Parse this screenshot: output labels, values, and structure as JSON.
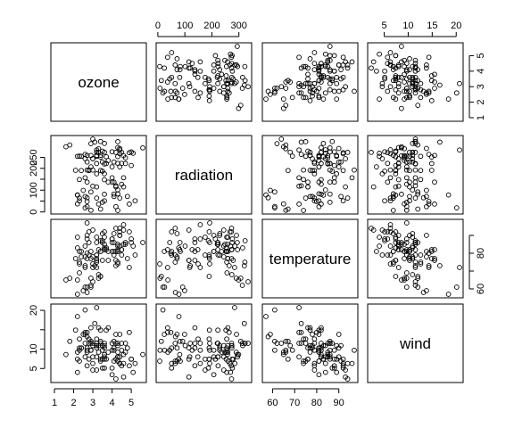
{
  "chart_data": {
    "type": "scatter",
    "variables": [
      "ozone",
      "radiation",
      "temperature",
      "wind"
    ],
    "ranges": {
      "ozone": [
        1.0,
        5.6
      ],
      "radiation": [
        7,
        334
      ],
      "temperature": [
        57,
        97
      ],
      "wind": [
        2.3,
        20.7
      ]
    },
    "axis_ticks": {
      "ozone": [
        1,
        2,
        3,
        4,
        5
      ],
      "radiation": [
        0,
        100,
        200,
        300
      ],
      "radiation_left": [
        0,
        50,
        100,
        150,
        200,
        250
      ],
      "radiation_left_labels": [
        "0",
        "",
        "100",
        "",
        "200",
        "250"
      ],
      "temperature": [
        60,
        70,
        80,
        90
      ],
      "temperature_right": [
        60,
        70,
        80,
        90
      ],
      "temperature_right_labels": [
        "60",
        "",
        "80",
        ""
      ],
      "wind": [
        5,
        10,
        15,
        20
      ],
      "wind_left": [
        5,
        10,
        15,
        20
      ],
      "wind_left_labels": [
        "5",
        "10",
        "",
        "20"
      ]
    },
    "observations": [
      [
        3.4,
        190,
        67,
        7.4
      ],
      [
        3.0,
        118,
        72,
        8.0
      ],
      [
        2.3,
        149,
        74,
        12.6
      ],
      [
        2.9,
        313,
        62,
        11.5
      ],
      [
        1.6,
        299,
        65,
        8.6
      ],
      [
        2.5,
        99,
        59,
        13.8
      ],
      [
        2.6,
        19,
        61,
        20.1
      ],
      [
        2.3,
        256,
        69,
        9.7
      ],
      [
        3.3,
        290,
        66,
        9.2
      ],
      [
        3.3,
        274,
        68,
        10.9
      ],
      [
        2.7,
        65,
        58,
        13.2
      ],
      [
        3.0,
        334,
        64,
        11.5
      ],
      [
        1.8,
        307,
        66,
        12.0
      ],
      [
        2.2,
        78,
        57,
        18.4
      ],
      [
        4.3,
        322,
        75,
        11.5
      ],
      [
        3.5,
        44,
        86,
        9.7
      ],
      [
        2.9,
        8,
        66,
        9.7
      ],
      [
        3.1,
        320,
        73,
        16.6
      ],
      [
        2.7,
        25,
        61,
        9.7
      ],
      [
        2.9,
        92,
        61,
        12.0
      ],
      [
        3.4,
        13,
        67,
        12.0
      ],
      [
        3.4,
        252,
        81,
        14.9
      ],
      [
        4.5,
        223,
        79,
        5.7
      ],
      [
        3.5,
        279,
        76,
        7.4
      ],
      [
        4.5,
        127,
        82,
        9.7
      ],
      [
        4.4,
        291,
        90,
        13.8
      ],
      [
        3.4,
        323,
        87,
        11.5
      ],
      [
        3.6,
        148,
        82,
        8.0
      ],
      [
        2.1,
        191,
        77,
        14.9
      ],
      [
        3.2,
        284,
        72,
        20.7
      ],
      [
        2.2,
        37,
        65,
        9.2
      ],
      [
        4.2,
        120,
        73,
        11.5
      ],
      [
        4.1,
        137,
        81,
        10.3
      ],
      [
        5.1,
        269,
        84,
        4.0
      ],
      [
        4.7,
        248,
        85,
        9.2
      ],
      [
        3.8,
        236,
        81,
        9.2
      ],
      [
        4.3,
        101,
        84,
        10.9
      ],
      [
        3.2,
        175,
        79,
        4.6
      ],
      [
        3.6,
        314,
        83,
        10.9
      ],
      [
        4.0,
        276,
        88,
        5.1
      ],
      [
        4.4,
        267,
        92,
        6.3
      ],
      [
        4.9,
        272,
        92,
        5.7
      ],
      [
        3.6,
        175,
        89,
        7.4
      ],
      [
        2.6,
        264,
        73,
        14.3
      ],
      [
        2.7,
        48,
        80,
        14.3
      ],
      [
        3.4,
        260,
        81,
        6.9
      ],
      [
        3.6,
        274,
        82,
        10.3
      ],
      [
        4.4,
        285,
        84,
        6.3
      ],
      [
        3.5,
        187,
        87,
        5.1
      ],
      [
        3.6,
        220,
        85,
        11.5
      ],
      [
        4.3,
        7,
        74,
        6.9
      ],
      [
        4.6,
        258,
        85,
        8.6
      ],
      [
        4.3,
        295,
        82,
        8.0
      ],
      [
        5.6,
        294,
        86,
        8.6
      ],
      [
        4.3,
        223,
        85,
        8.0
      ],
      [
        3.6,
        81,
        82,
        8.6
      ],
      [
        4.1,
        82,
        86,
        12.0
      ],
      [
        5.0,
        213,
        88,
        7.4
      ],
      [
        5.0,
        275,
        86,
        7.4
      ],
      [
        3.7,
        253,
        83,
        7.4
      ],
      [
        4.3,
        254,
        81,
        9.2
      ],
      [
        4.3,
        83,
        81,
        6.9
      ],
      [
        4.2,
        24,
        81,
        13.8
      ],
      [
        2.2,
        77,
        83,
        7.4
      ],
      [
        2.2,
        255,
        89,
        4.0
      ],
      [
        2.7,
        229,
        90,
        10.3
      ],
      [
        4.4,
        207,
        90,
        8.0
      ],
      [
        4.7,
        222,
        86,
        11.5
      ],
      [
        4.0,
        137,
        86,
        11.5
      ],
      [
        2.8,
        192,
        86,
        11.5
      ],
      [
        4.5,
        273,
        82,
        11.5
      ],
      [
        4.0,
        157,
        88,
        9.7
      ],
      [
        3.2,
        64,
        79,
        11.5
      ],
      [
        4.8,
        71,
        77,
        10.3
      ],
      [
        5.2,
        51,
        79,
        6.3
      ],
      [
        4.2,
        115,
        76,
        7.4
      ],
      [
        3.0,
        244,
        78,
        10.9
      ],
      [
        2.4,
        190,
        78,
        10.3
      ],
      [
        2.9,
        259,
        77,
        15.5
      ],
      [
        4.9,
        36,
        72,
        14.3
      ],
      [
        3.2,
        255,
        75,
        12.6
      ],
      [
        4.1,
        229,
        79,
        9.7
      ],
      [
        4.0,
        207,
        81,
        3.4
      ],
      [
        3.2,
        222,
        86,
        8.0
      ],
      [
        2.7,
        137,
        88,
        5.7
      ],
      [
        2.7,
        192,
        97,
        9.7
      ],
      [
        4.2,
        273,
        94,
        2.3
      ],
      [
        4.6,
        157,
        96,
        6.3
      ],
      [
        4.4,
        64,
        94,
        6.3
      ],
      [
        4.1,
        71,
        91,
        6.9
      ],
      [
        3.6,
        51,
        92,
        5.1
      ],
      [
        4.6,
        115,
        93,
        2.8
      ],
      [
        3.0,
        244,
        93,
        4.6
      ],
      [
        2.8,
        190,
        92,
        7.4
      ],
      [
        3.2,
        259,
        89,
        10.9
      ],
      [
        3.3,
        36,
        82,
        15.5
      ],
      [
        2.4,
        255,
        81,
        10.3
      ],
      [
        3.5,
        229,
        91,
        10.9
      ],
      [
        2.9,
        207,
        81,
        9.7
      ],
      [
        3.7,
        222,
        82,
        14.9
      ],
      [
        3.8,
        137,
        76,
        15.5
      ],
      [
        3.0,
        192,
        74,
        6.3
      ],
      [
        3.2,
        273,
        77,
        10.9
      ],
      [
        2.6,
        157,
        72,
        11.5
      ],
      [
        2.3,
        64,
        75,
        6.9
      ],
      [
        2.6,
        71,
        78,
        13.8
      ],
      [
        2.3,
        51,
        81,
        10.3
      ],
      [
        3.2,
        115,
        76,
        10.3
      ],
      [
        2.6,
        244,
        84,
        8.0
      ],
      [
        2.8,
        190,
        79,
        12.6
      ],
      [
        2.7,
        259,
        77,
        9.2
      ]
    ],
    "grid": false,
    "legend": "none"
  }
}
